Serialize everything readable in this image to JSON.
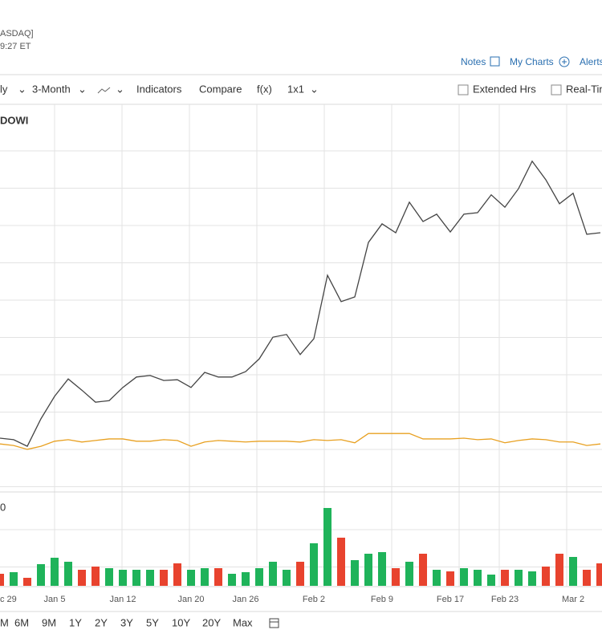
{
  "header": {
    "exchange": "ASDAQ]",
    "time": "9:27 ET"
  },
  "links": [
    "Notes",
    "My Charts",
    "Alerts"
  ],
  "toolbar": {
    "items": [
      "ly",
      "3-Month",
      "Indicators",
      "Compare",
      "f(x)",
      "1x1"
    ],
    "checkboxes": [
      "Extended Hrs",
      "Real-Tim"
    ]
  },
  "chart": {
    "type": "line",
    "symbol": "DOWI",
    "ylim": [
      0,
      100
    ],
    "series": [
      {
        "color": "#444444",
        "values": [
          13.7,
          13.3,
          11.6,
          18.7,
          24.5,
          29.0,
          26.1,
          23.0,
          23.4,
          26.8,
          29.5,
          29.9,
          28.6,
          28.8,
          26.8,
          30.7,
          29.5,
          29.5,
          30.9,
          34.2,
          39.8,
          40.5,
          35.3,
          39.4,
          55.8,
          49.0,
          50.2,
          64.3,
          69.1,
          66.8,
          74.7,
          69.7,
          71.6,
          67.0,
          71.6,
          72.0,
          76.6,
          73.4,
          78.2,
          85.3,
          80.5,
          74.3,
          77.0,
          66.4,
          66.8
        ]
      },
      {
        "color": "#e8a020",
        "values": [
          12.2,
          11.8,
          10.8,
          11.6,
          12.9,
          13.3,
          12.7,
          13.1,
          13.5,
          13.5,
          12.9,
          12.9,
          13.3,
          13.1,
          11.6,
          12.7,
          13.1,
          12.9,
          12.7,
          12.9,
          12.9,
          12.9,
          12.7,
          13.3,
          13.1,
          13.3,
          12.5,
          14.9,
          14.9,
          14.9,
          14.9,
          13.5,
          13.5,
          13.5,
          13.7,
          13.3,
          13.5,
          12.5,
          13.1,
          13.5,
          13.3,
          12.7,
          12.7,
          11.8,
          12.2
        ]
      }
    ]
  },
  "volume": {
    "type": "bar",
    "label": "0",
    "ylim": [
      0,
      116
    ],
    "up_color": "#1fb35a",
    "down_color": "#e8432e",
    "values": [
      15,
      17,
      10,
      27,
      35,
      30,
      20,
      24,
      22,
      20,
      20,
      20,
      20,
      28,
      20,
      22,
      22,
      15,
      17,
      22,
      30,
      20,
      30,
      53,
      97,
      60,
      32,
      40,
      42,
      22,
      30,
      40,
      20,
      18,
      22,
      20,
      14,
      20,
      20,
      18,
      24,
      40,
      36,
      20,
      28
    ],
    "up": [
      false,
      true,
      false,
      true,
      true,
      true,
      false,
      false,
      true,
      true,
      true,
      true,
      false,
      false,
      true,
      true,
      false,
      true,
      true,
      true,
      true,
      true,
      false,
      true,
      true,
      false,
      true,
      true,
      true,
      false,
      true,
      false,
      true,
      false,
      true,
      true,
      true,
      false,
      true,
      true,
      false,
      false,
      true,
      false,
      false
    ]
  },
  "x_labels": [
    {
      "label": "c 29",
      "index": 0
    },
    {
      "label": "Jan 5",
      "index": 4
    },
    {
      "label": "Jan 12",
      "index": 9
    },
    {
      "label": "Jan 20",
      "index": 14
    },
    {
      "label": "Jan 26",
      "index": 18
    },
    {
      "label": "Feb 2",
      "index": 23
    },
    {
      "label": "Feb 9",
      "index": 28
    },
    {
      "label": "Feb 17",
      "index": 33
    },
    {
      "label": "Feb 23",
      "index": 37
    },
    {
      "label": "Mar 2",
      "index": 42
    }
  ],
  "ranges": [
    "M",
    "6M",
    "9M",
    "1Y",
    "2Y",
    "3Y",
    "5Y",
    "10Y",
    "20Y",
    "Max"
  ]
}
